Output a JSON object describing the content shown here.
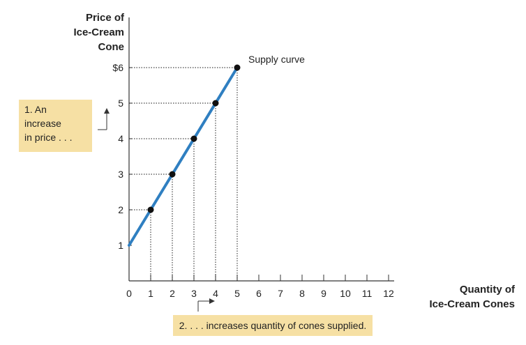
{
  "chart_data": {
    "type": "line",
    "x": [
      0,
      1,
      2,
      3,
      4,
      5
    ],
    "y": [
      1,
      2,
      3,
      4,
      5,
      6
    ],
    "points": [
      {
        "x": 1,
        "y": 2
      },
      {
        "x": 2,
        "y": 3
      },
      {
        "x": 3,
        "y": 4
      },
      {
        "x": 4,
        "y": 5
      },
      {
        "x": 5,
        "y": 6
      }
    ],
    "xlim": [
      0,
      12
    ],
    "ylim": [
      0,
      6
    ],
    "x_ticks": [
      "0",
      "1",
      "2",
      "3",
      "4",
      "5",
      "6",
      "7",
      "8",
      "9",
      "10",
      "11",
      "12"
    ],
    "y_ticks": [
      "1",
      "2",
      "3",
      "4",
      "5",
      "$6"
    ],
    "xlabel": [
      "Quantity of",
      "Ice-Cream Cones"
    ],
    "ylabel": [
      "Price of",
      "Ice-Cream",
      "Cone"
    ],
    "curve_label": "Supply curve",
    "annotations": {
      "price": [
        "1. An",
        "increase",
        "in price . . ."
      ],
      "quantity": "2. . . . increases quantity of cones supplied."
    },
    "colors": {
      "curve": "#2f7fc1",
      "callout_bg": "#f6e0a4",
      "axis": "#333333",
      "point": "#111111"
    },
    "grid": false
  }
}
